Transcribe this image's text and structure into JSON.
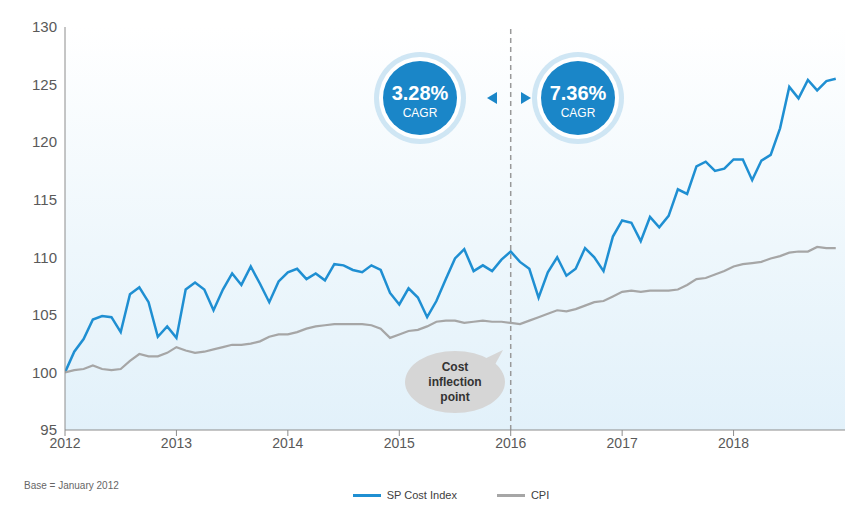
{
  "chart_data": {
    "type": "line",
    "x": [
      2012,
      2012.083,
      2012.167,
      2012.25,
      2012.333,
      2012.417,
      2012.5,
      2012.583,
      2012.667,
      2012.75,
      2012.833,
      2012.917,
      2013,
      2013.083,
      2013.167,
      2013.25,
      2013.333,
      2013.417,
      2013.5,
      2013.583,
      2013.667,
      2013.75,
      2013.833,
      2013.917,
      2014,
      2014.083,
      2014.167,
      2014.25,
      2014.333,
      2014.417,
      2014.5,
      2014.583,
      2014.667,
      2014.75,
      2014.833,
      2014.917,
      2015,
      2015.083,
      2015.167,
      2015.25,
      2015.333,
      2015.417,
      2015.5,
      2015.583,
      2015.667,
      2015.75,
      2015.833,
      2015.917,
      2016,
      2016.083,
      2016.167,
      2016.25,
      2016.333,
      2016.417,
      2016.5,
      2016.583,
      2016.667,
      2016.75,
      2016.833,
      2016.917,
      2017,
      2017.083,
      2017.167,
      2017.25,
      2017.333,
      2017.417,
      2017.5,
      2017.583,
      2017.667,
      2017.75,
      2017.833,
      2017.917,
      2018,
      2018.083,
      2018.167,
      2018.25,
      2018.333,
      2018.417,
      2018.5,
      2018.583,
      2018.667,
      2018.75,
      2018.833,
      2018.917
    ],
    "series": [
      {
        "name": "SP Cost Index",
        "color": "#1f8fd2",
        "values": [
          100,
          101.8,
          102.9,
          104.6,
          104.9,
          104.8,
          103.5,
          106.8,
          107.4,
          106.1,
          103.1,
          104.0,
          103.0,
          107.2,
          107.8,
          107.2,
          105.4,
          107.2,
          108.6,
          107.6,
          109.2,
          107.7,
          106.1,
          107.9,
          108.7,
          109.0,
          108.1,
          108.6,
          108.0,
          109.4,
          109.3,
          108.9,
          108.7,
          109.3,
          108.9,
          106.9,
          105.9,
          107.3,
          106.5,
          104.8,
          106.2,
          108.1,
          109.9,
          110.7,
          108.8,
          109.3,
          108.8,
          109.8,
          110.5,
          109.6,
          109.0,
          106.5,
          108.7,
          110.0,
          108.4,
          109.0,
          110.8,
          110.0,
          108.8,
          111.8,
          113.2,
          113.0,
          111.4,
          113.5,
          112.6,
          113.6,
          115.9,
          115.5,
          117.9,
          118.3,
          117.5,
          117.7,
          118.5,
          118.5,
          116.7,
          118.4,
          118.9,
          121.2,
          124.8,
          123.8,
          125.4,
          124.5,
          125.3,
          125.5
        ]
      },
      {
        "name": "CPI",
        "color": "#a6a6a6",
        "values": [
          100,
          100.2,
          100.3,
          100.6,
          100.3,
          100.2,
          100.3,
          101.0,
          101.6,
          101.4,
          101.4,
          101.7,
          102.2,
          101.9,
          101.7,
          101.8,
          102.0,
          102.2,
          102.4,
          102.4,
          102.5,
          102.7,
          103.1,
          103.3,
          103.3,
          103.5,
          103.8,
          104.0,
          104.1,
          104.2,
          104.2,
          104.2,
          104.2,
          104.1,
          103.8,
          103.0,
          103.3,
          103.6,
          103.7,
          104.0,
          104.4,
          104.5,
          104.5,
          104.3,
          104.4,
          104.5,
          104.4,
          104.4,
          104.3,
          104.2,
          104.5,
          104.8,
          105.1,
          105.4,
          105.3,
          105.5,
          105.8,
          106.1,
          106.2,
          106.6,
          107.0,
          107.1,
          107.0,
          107.1,
          107.1,
          107.1,
          107.2,
          107.6,
          108.1,
          108.2,
          108.5,
          108.8,
          109.2,
          109.4,
          109.5,
          109.6,
          109.9,
          110.1,
          110.4,
          110.5,
          110.5,
          110.9,
          110.8,
          110.8
        ]
      }
    ],
    "xlim": [
      2012,
      2019
    ],
    "xticks": [
      2012,
      2013,
      2014,
      2015,
      2016,
      2017,
      2018
    ],
    "ylim": [
      95,
      130
    ],
    "yticks": [
      95,
      100,
      105,
      110,
      115,
      120,
      125,
      130
    ],
    "grid": false,
    "legend": "bottom",
    "annotations": {
      "cagr": [
        {
          "text": "3.28%",
          "label": "CAGR"
        },
        {
          "text": "7.36%",
          "label": "CAGR"
        }
      ],
      "inflection": {
        "x": 2016,
        "label": "Cost inflection point"
      }
    },
    "footnote": "Base = January 2012"
  }
}
